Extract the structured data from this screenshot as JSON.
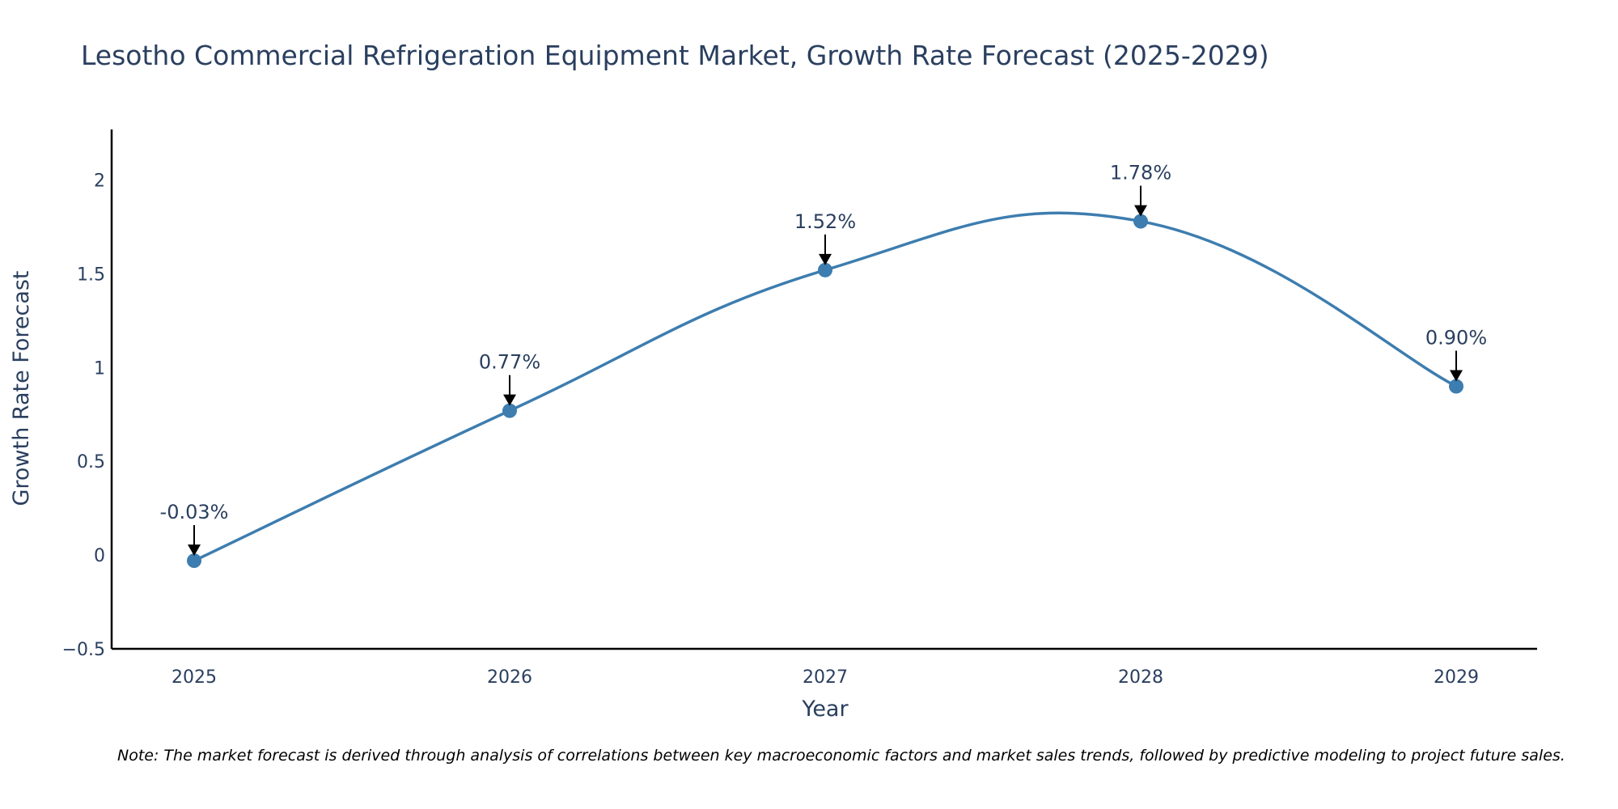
{
  "chart_data": {
    "type": "line",
    "title": "Lesotho Commercial Refrigeration Equipment Market, Growth Rate Forecast (2025-2029)",
    "xlabel": "Year",
    "ylabel": "Growth Rate Forecast",
    "x": [
      "2025",
      "2026",
      "2027",
      "2028",
      "2029"
    ],
    "series": [
      {
        "name": "Growth Rate Forecast",
        "values": [
          -0.03,
          0.77,
          1.52,
          1.78,
          0.9
        ],
        "labels": [
          "-0.03%",
          "0.77%",
          "1.52%",
          "1.78%",
          "0.90%"
        ]
      }
    ],
    "ylim": [
      -0.5,
      2.27
    ],
    "yticks": [
      -0.5,
      0,
      0.5,
      1,
      1.5,
      2
    ],
    "ytick_labels": [
      "−0.5",
      "0",
      "0.5",
      "1",
      "1.5",
      "2"
    ],
    "grid": false,
    "line_color": "#3d7daf",
    "note": "Note: The market forecast is derived through analysis of correlations between key macroeconomic factors and market sales trends, followed by predictive modeling to project future sales."
  }
}
